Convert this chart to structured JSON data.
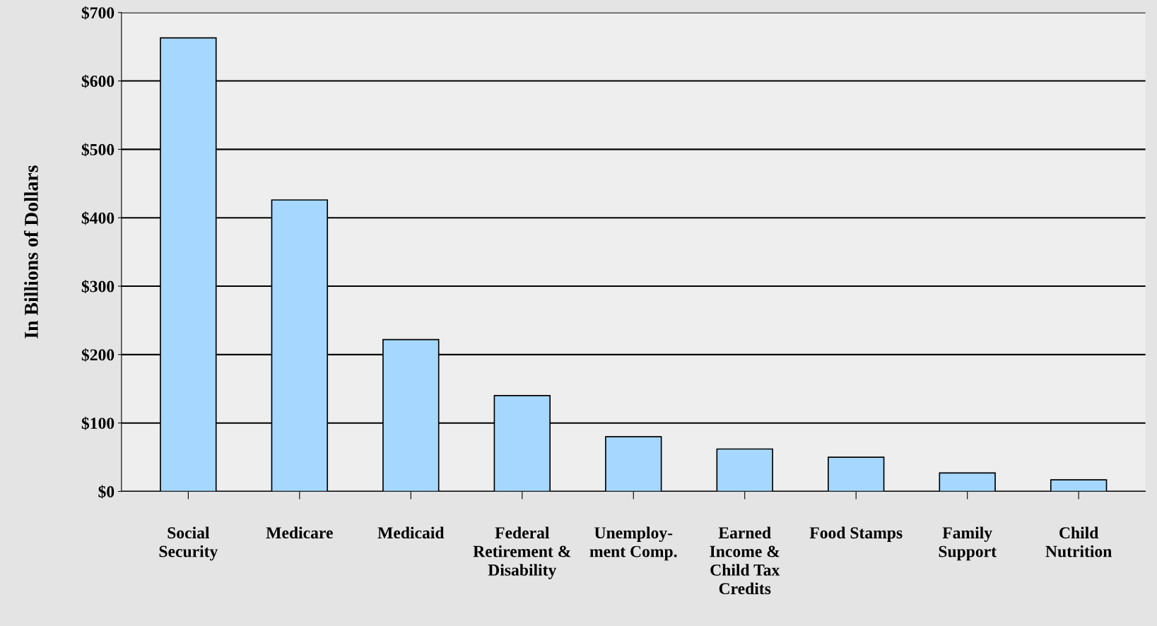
{
  "chart_data": {
    "type": "bar",
    "ylabel": "In Billions of Dollars",
    "categories": [
      "Social\nSecurity",
      "Medicare",
      "Medicaid",
      "Federal\nRetirement &\nDisability",
      "Unemploy-\nment Comp.",
      "Earned\nIncome &\nChild Tax\nCredits",
      "Food Stamps",
      "Family\nSupport",
      "Child\nNutrition"
    ],
    "values": [
      663,
      426,
      222,
      140,
      80,
      62,
      50,
      27,
      17
    ],
    "color": "#a6d8ff",
    "ylim": [
      0,
      700
    ],
    "yticks": [
      {
        "value": 0,
        "label": "$0"
      },
      {
        "value": 100,
        "label": "$100"
      },
      {
        "value": 200,
        "label": "$200"
      },
      {
        "value": 300,
        "label": "$300"
      },
      {
        "value": 400,
        "label": "$400"
      },
      {
        "value": 500,
        "label": "$500"
      },
      {
        "value": 600,
        "label": "$600"
      },
      {
        "value": 700,
        "label": "$700"
      }
    ],
    "grid": "y"
  }
}
